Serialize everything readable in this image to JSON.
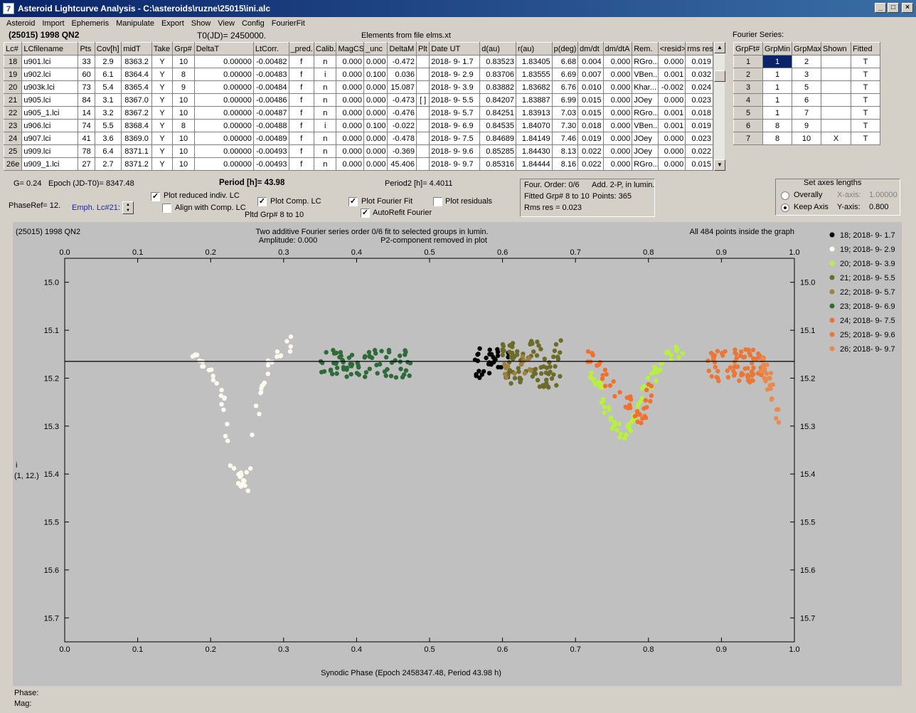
{
  "window": {
    "title": "Asteroid Lightcurve Analysis - C:\\asteroids\\ruzne\\25015\\ini.alc",
    "icon": "app-logo-icon",
    "min": "_",
    "max": "□",
    "close": "×"
  },
  "menu": [
    "Asteroid",
    "Import",
    "Ephemeris",
    "Manipulate",
    "Export",
    "Show",
    "View",
    "Config",
    "FourierFit"
  ],
  "header": {
    "asteroid": "(25015) 1998 QN2",
    "t0": "T0(JD)= 2450000.",
    "elements": "Elements from file elms.xt"
  },
  "lc_table": {
    "columns": [
      "Lc#",
      "LCfilename",
      "Pts",
      "Cov[h]",
      "midT",
      "Take",
      "Grp#",
      "DeltaT",
      "LtCorr.",
      "_pred.",
      "Calib.",
      "MagCS",
      "_unc",
      "DeltaM",
      "Plt",
      "Date UT",
      "d(au)",
      "r(au)",
      "p(deg)",
      "dm/dt",
      "dm/dtA",
      "Rem.",
      "<resid>",
      "rms res"
    ],
    "rows": [
      [
        "18",
        "u901.lci",
        "33",
        "2.9",
        "8363.2",
        "Y",
        "10",
        "0.00000",
        "-0.00482",
        "f",
        "n",
        "0.000",
        "0.000",
        "-0.472",
        "",
        "2018- 9- 1.7",
        "0.83523",
        "1.83405",
        "6.68",
        "0.004",
        "0.000",
        "RGro...",
        "0.000",
        "0.019"
      ],
      [
        "19",
        "u902.lci",
        "60",
        "6.1",
        "8364.4",
        "Y",
        "8",
        "0.00000",
        "-0.00483",
        "f",
        "i",
        "0.000",
        "0.100",
        "0.036",
        "",
        "2018- 9- 2.9",
        "0.83706",
        "1.83555",
        "6.69",
        "0.007",
        "0.000",
        "VBen...",
        "0.001",
        "0.032"
      ],
      [
        "20",
        "u903k.lci",
        "73",
        "5.4",
        "8365.4",
        "Y",
        "9",
        "0.00000",
        "-0.00484",
        "f",
        "n",
        "0.000",
        "0.000",
        "15.087",
        "",
        "2018- 9- 3.9",
        "0.83882",
        "1.83682",
        "6.76",
        "0.010",
        "0.000",
        "Khar...",
        "-0.002",
        "0.024"
      ],
      [
        "21",
        "u905.lci",
        "84",
        "3.1",
        "8367.0",
        "Y",
        "10",
        "0.00000",
        "-0.00486",
        "f",
        "n",
        "0.000",
        "0.000",
        "-0.473",
        "[ ]",
        "2018- 9- 5.5",
        "0.84207",
        "1.83887",
        "6.99",
        "0.015",
        "0.000",
        "JOey",
        "0.000",
        "0.023"
      ],
      [
        "22",
        "u905_1.lci",
        "14",
        "3.2",
        "8367.2",
        "Y",
        "10",
        "0.00000",
        "-0.00487",
        "f",
        "n",
        "0.000",
        "0.000",
        "-0.476",
        "",
        "2018- 9- 5.7",
        "0.84251",
        "1.83913",
        "7.03",
        "0.015",
        "0.000",
        "RGro...",
        "0.001",
        "0.018"
      ],
      [
        "23",
        "u906.lci",
        "74",
        "5.5",
        "8368.4",
        "Y",
        "8",
        "0.00000",
        "-0.00488",
        "f",
        "i",
        "0.000",
        "0.100",
        "-0.022",
        "",
        "2018- 9- 6.9",
        "0.84535",
        "1.84070",
        "7.30",
        "0.018",
        "0.000",
        "VBen...",
        "0.001",
        "0.019"
      ],
      [
        "24",
        "u907.lci",
        "41",
        "3.6",
        "8369.0",
        "Y",
        "10",
        "0.00000",
        "-0.00489",
        "f",
        "n",
        "0.000",
        "0.000",
        "-0.478",
        "",
        "2018- 9- 7.5",
        "0.84689",
        "1.84149",
        "7.46",
        "0.019",
        "0.000",
        "JOey",
        "0.000",
        "0.023"
      ],
      [
        "25",
        "u909.lci",
        "78",
        "6.4",
        "8371.1",
        "Y",
        "10",
        "0.00000",
        "-0.00493",
        "f",
        "n",
        "0.000",
        "0.000",
        "-0.369",
        "",
        "2018- 9- 9.6",
        "0.85285",
        "1.84430",
        "8.13",
        "0.022",
        "0.000",
        "JOey",
        "0.000",
        "0.022"
      ],
      [
        "26e",
        "u909_1.lci",
        "27",
        "2.7",
        "8371.2",
        "Y",
        "10",
        "0.00000",
        "-0.00493",
        "f",
        "n",
        "0.000",
        "0.000",
        "45.406",
        "",
        "2018- 9- 9.7",
        "0.85316",
        "1.84444",
        "8.16",
        "0.022",
        "0.000",
        "RGro...",
        "0.000",
        "0.015"
      ]
    ]
  },
  "fourier_table": {
    "caption": "Fourier Series:",
    "columns": [
      "GrpFt#",
      "GrpMin",
      "GrpMax",
      "Shown",
      "Fitted"
    ],
    "rows": [
      [
        "1",
        "1",
        "2",
        "",
        "T"
      ],
      [
        "2",
        "1",
        "3",
        "",
        "T"
      ],
      [
        "3",
        "1",
        "5",
        "",
        "T"
      ],
      [
        "4",
        "1",
        "6",
        "",
        "T"
      ],
      [
        "5",
        "1",
        "7",
        "",
        "T"
      ],
      [
        "6",
        "8",
        "9",
        "",
        "T"
      ],
      [
        "7",
        "8",
        "10",
        "X",
        "T"
      ]
    ]
  },
  "params": {
    "g": "G= 0.24",
    "epoch": "Epoch (JD-T0)= 8347.48",
    "period_label": "Period [h]= 43.98",
    "period2": "Period2 [h]= 4.4011",
    "phaseref": "PhaseRef= 12.",
    "emph": "Emph. Lc#21:",
    "plot_reduced": "Plot reduced indiv. LC",
    "align_comp": "Align with Comp. LC",
    "plot_comp": "Plot Comp. LC",
    "plotted_grp": "Pltd Grp#  8  to  10",
    "plot_fourier": "Plot Fourier Fit",
    "autorefit": "AutoRefit Fourier",
    "plot_residuals": "Plot residuals",
    "checked": {
      "plot_reduced": true,
      "align_comp": false,
      "plot_comp": true,
      "plot_fourier": true,
      "autorefit": true,
      "plot_residuals": false
    }
  },
  "fourier_info": {
    "order": "Four. Order:  0/6",
    "add": "Add. 2-P, in lumin.",
    "fitted": "Fitted Grp# 8 to 10",
    "points": "Points: 365",
    "rms": "Rms res     = 0.023"
  },
  "axes_box": {
    "title": "Set axes lengths",
    "overall": "Overally",
    "keep": "Keep Axis",
    "xaxis": "X-axis:",
    "xval": "1.00000",
    "yaxis": "Y-axis:",
    "yval": "0.800",
    "selected": "keep"
  },
  "status": {
    "phase": "Phase:",
    "mag": "Mag:"
  },
  "chart_data": {
    "type": "scatter",
    "title": "Two additive Fourier series order 0/6 fit to selected groups in lumin.",
    "subtitle": "Amplitude: 0.000",
    "note": "P2-component removed in plot",
    "corner_label": "(25015) 1998 QN2",
    "points_note": "All 484 points inside the graph",
    "xlabel": "Synodic Phase (Epoch 2458347.48, Period 43.98 h)",
    "ylabel": [
      "i",
      "(1, 12.)"
    ],
    "xlim": [
      0.0,
      1.0
    ],
    "ylim": [
      15.75,
      14.95
    ],
    "y_reversed": true,
    "xticks": [
      0.0,
      0.1,
      0.2,
      0.3,
      0.4,
      0.5,
      0.6,
      0.7,
      0.8,
      0.9,
      1.0
    ],
    "xtick_labels": [
      "0.0",
      "0.1",
      "0.2",
      "0.3",
      "0.4",
      "0.5",
      "0.6",
      "0.7",
      "0.8",
      "0.9",
      "1.0"
    ],
    "yticks": [
      15.0,
      15.1,
      15.2,
      15.3,
      15.4,
      15.5,
      15.6,
      15.7
    ],
    "ytick_labels": [
      "15.0",
      "15.1",
      "15.2",
      "15.3",
      "15.4",
      "15.5",
      "15.6",
      "15.7"
    ],
    "fit_line": 15.165,
    "series": [
      {
        "name": "18; 2018- 9- 1.7",
        "color": "#000000",
        "clusters": [
          [
            0.56,
            0.61,
            15.135,
            15.2,
            33
          ]
        ]
      },
      {
        "name": "19; 2018- 9- 2.9",
        "color": "#fffaf0",
        "shape": [
          [
            0.175,
            15.15
          ],
          [
            0.19,
            15.17
          ],
          [
            0.205,
            15.2
          ],
          [
            0.215,
            15.23
          ],
          [
            0.222,
            15.3
          ],
          [
            0.23,
            15.37
          ],
          [
            0.24,
            15.4
          ],
          [
            0.248,
            15.43
          ],
          [
            0.255,
            15.38
          ],
          [
            0.262,
            15.3
          ],
          [
            0.268,
            15.23
          ],
          [
            0.275,
            15.19
          ],
          [
            0.285,
            15.17
          ],
          [
            0.3,
            15.15
          ],
          [
            0.31,
            15.12
          ]
        ],
        "count": 60
      },
      {
        "name": "20; 2018- 9- 3.9",
        "color": "#b8f040",
        "shape": [
          [
            0.72,
            15.2
          ],
          [
            0.735,
            15.22
          ],
          [
            0.745,
            15.27
          ],
          [
            0.755,
            15.3
          ],
          [
            0.765,
            15.32
          ],
          [
            0.775,
            15.3
          ],
          [
            0.785,
            15.27
          ],
          [
            0.795,
            15.22
          ],
          [
            0.81,
            15.19
          ],
          [
            0.82,
            15.17
          ],
          [
            0.83,
            15.15
          ],
          [
            0.845,
            15.14
          ]
        ],
        "count": 73
      },
      {
        "name": "21; 2018- 9- 5.5",
        "color": "#6b6b2a",
        "clusters": [
          [
            0.6,
            0.68,
            15.12,
            15.22,
            84
          ]
        ]
      },
      {
        "name": "22; 2018- 9- 5.7",
        "color": "#a08040",
        "clusters": [
          [
            0.6,
            0.64,
            15.15,
            15.2,
            14
          ]
        ]
      },
      {
        "name": "23; 2018- 9- 6.9",
        "color": "#2e6b3a",
        "clusters": [
          [
            0.35,
            0.475,
            15.14,
            15.2,
            74
          ]
        ]
      },
      {
        "name": "24; 2018- 9- 7.5",
        "color": "#f07030",
        "shape": [
          [
            0.715,
            15.15
          ],
          [
            0.73,
            15.17
          ],
          [
            0.74,
            15.2
          ],
          [
            0.75,
            15.22
          ],
          [
            0.76,
            15.24
          ],
          [
            0.77,
            15.25
          ],
          [
            0.78,
            15.26
          ],
          [
            0.79,
            15.29
          ],
          [
            0.8,
            15.24
          ],
          [
            0.805,
            15.2
          ]
        ],
        "count": 41
      },
      {
        "name": "25; 2018- 9- 9.6",
        "color": "#e87838",
        "clusters": [
          [
            0.88,
            0.96,
            15.14,
            15.21,
            78
          ]
        ]
      },
      {
        "name": "26; 2018- 9- 9.7",
        "color": "#e88a50",
        "shape": [
          [
            0.955,
            15.17
          ],
          [
            0.965,
            15.2
          ],
          [
            0.972,
            15.25
          ],
          [
            0.975,
            15.29
          ]
        ],
        "count": 27
      }
    ]
  }
}
